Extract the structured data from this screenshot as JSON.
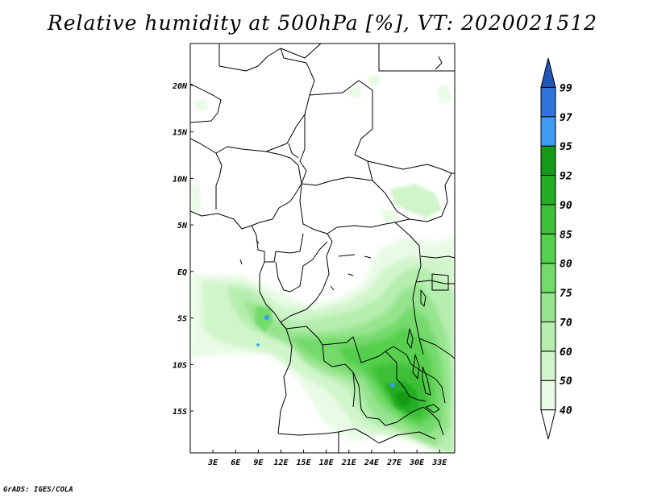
{
  "title": "Relative humidity at 500hPa [%], VT: 2020021512",
  "credit": "GrADS: IGES/COLA",
  "map": {
    "lon_range": [
      0,
      35
    ],
    "lat_range": [
      -19.5,
      24.5
    ],
    "lon_ticks": [
      "3E",
      "6E",
      "9E",
      "12E",
      "15E",
      "18E",
      "21E",
      "24E",
      "27E",
      "30E",
      "33E"
    ],
    "lat_ticks": [
      "20N",
      "15N",
      "10N",
      "5N",
      "EQ",
      "5S",
      "10S",
      "15S"
    ],
    "variable": "Relative humidity",
    "level": "500hPa",
    "units": "%"
  },
  "colorbar": {
    "levels": [
      "40",
      "50",
      "60",
      "70",
      "75",
      "80",
      "85",
      "90",
      "92",
      "95",
      "97",
      "99"
    ],
    "colors": [
      "#ffffff",
      "#e9fbe6",
      "#d1f5cb",
      "#b5eeaf",
      "#96e48e",
      "#74da6c",
      "#56cf4e",
      "#3cc037",
      "#22ad23",
      "#149a18",
      "#3f9cf0",
      "#2f74d6",
      "#2355b8"
    ],
    "extends": "both"
  }
}
